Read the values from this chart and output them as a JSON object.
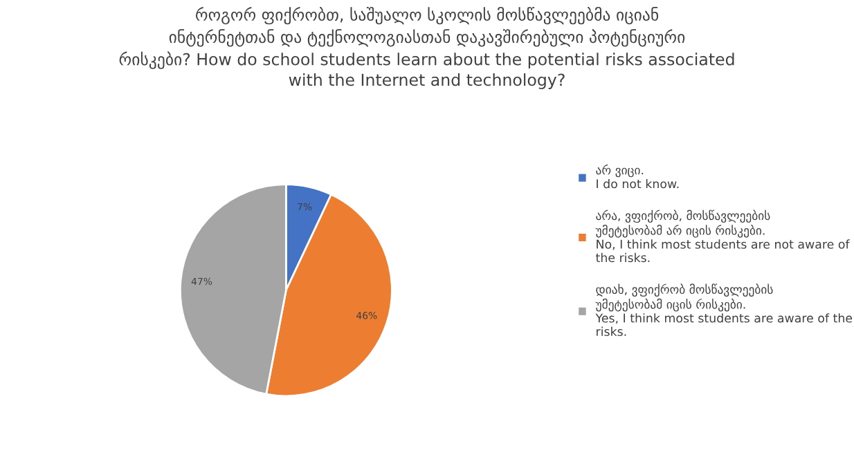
{
  "chart_data": {
    "type": "pie",
    "title": "როგორ ფიქრობთ, საშუალო სკოლის მოსწავლეებმა იციან\nინტერნეტთან და ტექნოლოგიასთან დაკავშირებული პოტენციური\nრისკები? How do school students learn about the potential risks associated\nwith the Internet and technology?",
    "categories": [
      "არ ვიცი.\nI do not know.",
      "არა, ვფიქრობ, მოსწავლეების\nუმეტესობამ არ იცის რისკები.\nNo, I think most students are not aware of\nthe risks.",
      "დიახ, ვფიქრობ მოსწავლეების\nუმეტესობამ იცის რისკები.\nYes, I think most students are aware of the\nrisks."
    ],
    "values": [
      7,
      46,
      47
    ],
    "colors": [
      "#4472c4",
      "#ed7d31",
      "#a5a5a5"
    ],
    "value_labels": [
      "7%",
      "46%",
      "47%"
    ],
    "legend": "right"
  }
}
